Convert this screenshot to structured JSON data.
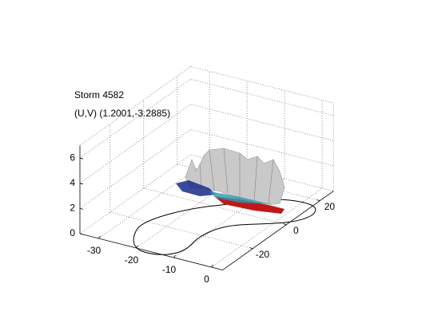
{
  "chart_data": {
    "type": "surface3d",
    "title": [
      "Storm 4582",
      "(U,V) (1.2001,-3.2885)"
    ],
    "xlim": [
      -35,
      3
    ],
    "ylim": [
      -38,
      28
    ],
    "zlim": [
      0,
      7
    ],
    "xticks": [
      -30,
      -20,
      -10,
      0
    ],
    "yticks": [
      -20,
      0,
      20
    ],
    "zticks": [
      0,
      2,
      4,
      6
    ],
    "grid": true
  }
}
